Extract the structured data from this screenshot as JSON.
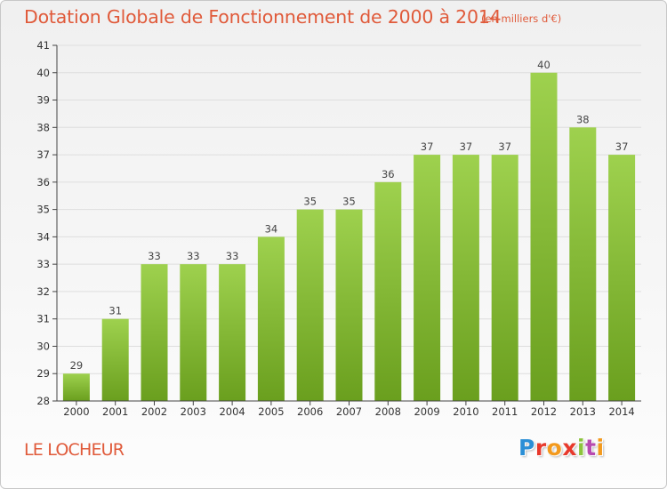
{
  "header": {
    "title": "Dotation Globale de Fonctionnement de 2000 à 2014",
    "subtitle": "(en milliers d'€)"
  },
  "commune_name": "LE LOCHEUR",
  "logo": {
    "text": "Proxiti",
    "colors": [
      "#2b8fd6",
      "#e8392c",
      "#f39a1e",
      "#e8392c",
      "#8cc43c",
      "#b84ab0",
      "#f39a1e"
    ]
  },
  "colors": {
    "bar_top": "#9ed14e",
    "bar_bottom": "#6a9f1e",
    "accent_text": "#e05a3a",
    "axis": "#444444",
    "grid": "#dedede"
  },
  "chart_data": {
    "type": "bar",
    "categories": [
      "2000",
      "2001",
      "2002",
      "2003",
      "2004",
      "2005",
      "2006",
      "2007",
      "2008",
      "2009",
      "2010",
      "2011",
      "2012",
      "2013",
      "2014"
    ],
    "values": [
      29,
      31,
      33,
      33,
      33,
      34,
      35,
      35,
      36,
      37,
      37,
      37,
      40,
      38,
      37
    ],
    "data_labels": [
      "29",
      "31",
      "33",
      "33",
      "33",
      "34",
      "35",
      "35",
      "36",
      "37",
      "37",
      "37",
      "40",
      "38",
      "37"
    ],
    "ylim": [
      28,
      41
    ],
    "yticks": [
      28,
      29,
      30,
      31,
      32,
      33,
      34,
      35,
      36,
      37,
      38,
      39,
      40,
      41
    ],
    "xlabel": "",
    "ylabel": "",
    "grid": true,
    "legend": "none"
  }
}
